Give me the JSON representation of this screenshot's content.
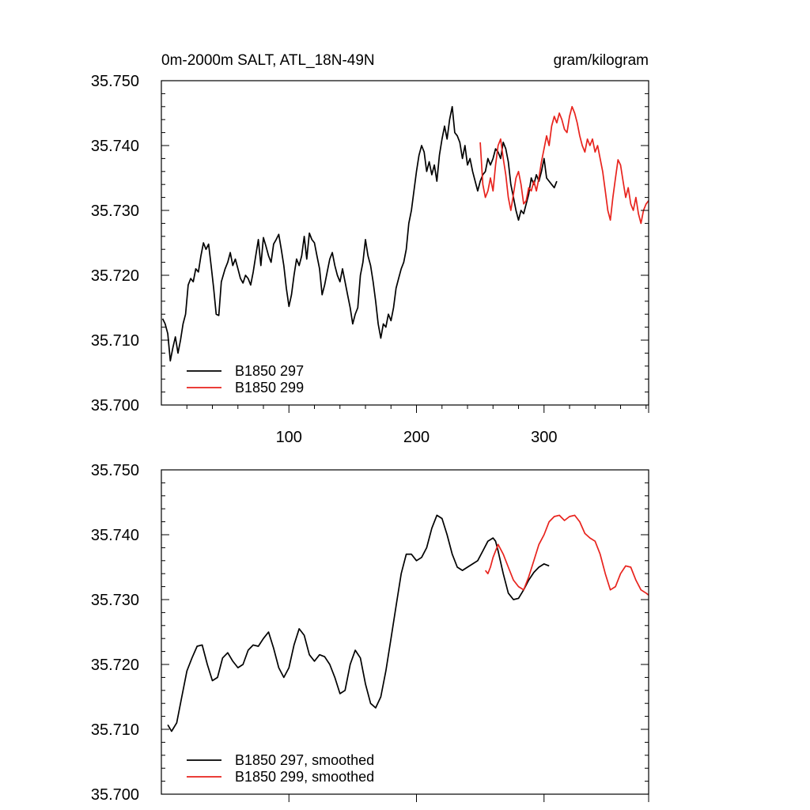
{
  "chart_data": [
    {
      "type": "line",
      "title": "0m-2000m SALT, ATL_18N-49N",
      "units": "gram/kilogram",
      "xlim": [
        0,
        382
      ],
      "ylim": [
        35.7,
        35.75
      ],
      "xticks": [
        100,
        200,
        300
      ],
      "yticks": [
        "35.700",
        "35.710",
        "35.720",
        "35.730",
        "35.740",
        "35.750"
      ],
      "legend_position": "bottom-left",
      "series": [
        {
          "name": "B1850 297",
          "color": "#000000",
          "x": [
            1,
            3,
            5,
            7,
            9,
            11,
            13,
            15,
            17,
            19,
            21,
            23,
            25,
            27,
            29,
            31,
            33,
            35,
            37,
            39,
            41,
            43,
            45,
            47,
            50,
            52,
            54,
            56,
            58,
            60,
            62,
            64,
            66,
            68,
            70,
            72,
            74,
            76,
            78,
            80,
            82,
            84,
            86,
            88,
            90,
            92,
            94,
            96,
            98,
            100,
            102,
            104,
            106,
            108,
            110,
            112,
            114,
            116,
            118,
            120,
            122,
            124,
            126,
            128,
            130,
            132,
            134,
            136,
            138,
            140,
            142,
            144,
            146,
            148,
            150,
            152,
            154,
            156,
            158,
            160,
            162,
            164,
            166,
            168,
            170,
            172,
            174,
            176,
            178,
            180,
            182,
            184,
            186,
            188,
            190,
            192,
            194,
            196,
            198,
            200,
            202,
            204,
            206,
            208,
            210,
            212,
            214,
            216,
            218,
            220,
            222,
            224,
            226,
            228,
            230,
            232,
            234,
            236,
            238,
            240,
            242,
            244,
            246,
            248,
            250,
            252,
            254,
            256,
            258,
            260,
            262,
            264,
            266,
            268,
            270,
            272,
            274,
            276,
            278,
            280,
            282,
            284,
            286,
            288,
            290,
            292,
            294,
            296,
            298,
            300,
            302,
            304,
            306,
            308,
            310
          ],
          "y": [
            35.7133,
            35.7125,
            35.711,
            35.7068,
            35.7088,
            35.7105,
            35.708,
            35.71,
            35.7125,
            35.714,
            35.7185,
            35.7195,
            35.719,
            35.721,
            35.7205,
            35.723,
            35.725,
            35.724,
            35.7248,
            35.7215,
            35.718,
            35.714,
            35.7138,
            35.719,
            35.721,
            35.722,
            35.7235,
            35.7215,
            35.7225,
            35.721,
            35.7195,
            35.7188,
            35.72,
            35.7195,
            35.7185,
            35.7205,
            35.723,
            35.7255,
            35.7215,
            35.7258,
            35.7245,
            35.723,
            35.722,
            35.7248,
            35.7255,
            35.7263,
            35.724,
            35.7215,
            35.718,
            35.7152,
            35.717,
            35.72,
            35.7225,
            35.7215,
            35.723,
            35.726,
            35.7225,
            35.7265,
            35.7255,
            35.725,
            35.723,
            35.721,
            35.717,
            35.7185,
            35.7205,
            35.7225,
            35.7235,
            35.7215,
            35.72,
            35.719,
            35.721,
            35.719,
            35.717,
            35.715,
            35.7125,
            35.714,
            35.715,
            35.72,
            35.722,
            35.7255,
            35.723,
            35.7215,
            35.719,
            35.716,
            35.7125,
            35.7103,
            35.7125,
            35.712,
            35.714,
            35.713,
            35.715,
            35.718,
            35.7195,
            35.721,
            35.722,
            35.724,
            35.728,
            35.73,
            35.733,
            35.736,
            35.7385,
            35.74,
            35.739,
            35.736,
            35.7375,
            35.7355,
            35.737,
            35.7345,
            35.7385,
            35.741,
            35.743,
            35.741,
            35.744,
            35.746,
            35.742,
            35.7415,
            35.7405,
            35.738,
            35.74,
            35.737,
            35.738,
            35.736,
            35.7345,
            35.733,
            35.7345,
            35.7355,
            35.736,
            35.738,
            35.737,
            35.738,
            35.7395,
            35.739,
            35.738,
            35.7405,
            35.7395,
            35.7375,
            35.734,
            35.732,
            35.73,
            35.7285,
            35.73,
            35.7295,
            35.731,
            35.7325,
            35.735,
            35.734,
            35.7355,
            35.7345,
            35.736,
            35.738,
            35.735,
            35.7345,
            35.734,
            35.7335,
            35.7345
          ]
        },
        {
          "name": "B1850 299",
          "color": "#e8231d",
          "x": [
            250,
            252,
            254,
            256,
            258,
            260,
            262,
            264,
            266,
            268,
            270,
            272,
            274,
            276,
            278,
            280,
            282,
            284,
            286,
            288,
            290,
            292,
            294,
            296,
            298,
            300,
            302,
            304,
            306,
            308,
            310,
            312,
            314,
            316,
            318,
            320,
            322,
            324,
            326,
            328,
            330,
            332,
            334,
            336,
            338,
            340,
            342,
            344,
            346,
            348,
            350,
            352,
            354,
            356,
            358,
            360,
            362,
            364,
            366,
            368,
            370,
            372,
            374,
            376,
            378,
            380,
            382
          ],
          "y": [
            35.7405,
            35.734,
            35.732,
            35.733,
            35.735,
            35.733,
            35.737,
            35.74,
            35.741,
            35.738,
            35.7355,
            35.732,
            35.73,
            35.7325,
            35.735,
            35.736,
            35.734,
            35.731,
            35.7315,
            35.7335,
            35.733,
            35.7345,
            35.733,
            35.735,
            35.7375,
            35.7395,
            35.7415,
            35.74,
            35.743,
            35.7445,
            35.7435,
            35.745,
            35.744,
            35.7425,
            35.742,
            35.7445,
            35.746,
            35.745,
            35.7435,
            35.7415,
            35.74,
            35.739,
            35.741,
            35.74,
            35.741,
            35.739,
            35.74,
            35.738,
            35.736,
            35.733,
            35.73,
            35.7285,
            35.732,
            35.735,
            35.7378,
            35.737,
            35.7345,
            35.732,
            35.7335,
            35.731,
            35.73,
            35.732,
            35.7295,
            35.728,
            35.73,
            35.731,
            35.7315
          ]
        }
      ]
    },
    {
      "type": "line",
      "title": "",
      "xlim": [
        0,
        382
      ],
      "ylim": [
        35.7,
        35.75
      ],
      "yticks": [
        "35.700",
        "35.710",
        "35.720",
        "35.730",
        "35.740",
        "35.750"
      ],
      "legend_position": "bottom-left",
      "series": [
        {
          "name": "B1850 297, smoothed",
          "color": "#000000",
          "x": [
            5,
            8,
            12,
            16,
            20,
            24,
            28,
            32,
            36,
            40,
            44,
            48,
            52,
            56,
            60,
            64,
            68,
            72,
            76,
            80,
            84,
            88,
            92,
            96,
            100,
            104,
            108,
            112,
            116,
            120,
            124,
            128,
            132,
            136,
            140,
            144,
            148,
            152,
            156,
            160,
            164,
            168,
            172,
            176,
            180,
            184,
            188,
            192,
            196,
            200,
            204,
            208,
            212,
            216,
            220,
            224,
            228,
            232,
            236,
            240,
            244,
            248,
            252,
            256,
            260,
            262,
            264,
            268,
            272,
            276,
            280,
            284,
            288,
            292,
            296,
            300,
            304
          ],
          "y": [
            35.7107,
            35.7097,
            35.711,
            35.715,
            35.719,
            35.721,
            35.7228,
            35.723,
            35.72,
            35.7175,
            35.718,
            35.721,
            35.7218,
            35.7205,
            35.7195,
            35.72,
            35.7222,
            35.723,
            35.7228,
            35.724,
            35.725,
            35.7225,
            35.7195,
            35.718,
            35.7195,
            35.723,
            35.7255,
            35.7245,
            35.7215,
            35.7205,
            35.7215,
            35.7212,
            35.72,
            35.718,
            35.7155,
            35.716,
            35.72,
            35.7222,
            35.721,
            35.717,
            35.714,
            35.7133,
            35.715,
            35.719,
            35.724,
            35.729,
            35.734,
            35.737,
            35.737,
            35.736,
            35.7365,
            35.738,
            35.741,
            35.743,
            35.7425,
            35.74,
            35.737,
            35.735,
            35.7345,
            35.735,
            35.7355,
            35.736,
            35.7375,
            35.739,
            35.7395,
            35.739,
            35.7375,
            35.734,
            35.731,
            35.73,
            35.7302,
            35.7315,
            35.733,
            35.7342,
            35.735,
            35.7355,
            35.7352
          ]
        },
        {
          "name": "B1850 299, smoothed",
          "color": "#e8231d",
          "x": [
            254,
            256,
            258,
            260,
            264,
            268,
            272,
            276,
            280,
            284,
            288,
            292,
            296,
            300,
            304,
            308,
            312,
            316,
            320,
            324,
            328,
            332,
            336,
            340,
            344,
            348,
            352,
            356,
            360,
            364,
            368,
            372,
            376,
            380,
            382
          ],
          "y": [
            35.7345,
            35.734,
            35.735,
            35.7365,
            35.7385,
            35.737,
            35.735,
            35.733,
            35.732,
            35.7315,
            35.7335,
            35.736,
            35.7385,
            35.74,
            35.742,
            35.7428,
            35.743,
            35.7422,
            35.7428,
            35.743,
            35.742,
            35.7402,
            35.7395,
            35.739,
            35.737,
            35.734,
            35.7315,
            35.732,
            35.734,
            35.7352,
            35.735,
            35.733,
            35.7315,
            35.731,
            35.7307
          ]
        }
      ]
    }
  ]
}
